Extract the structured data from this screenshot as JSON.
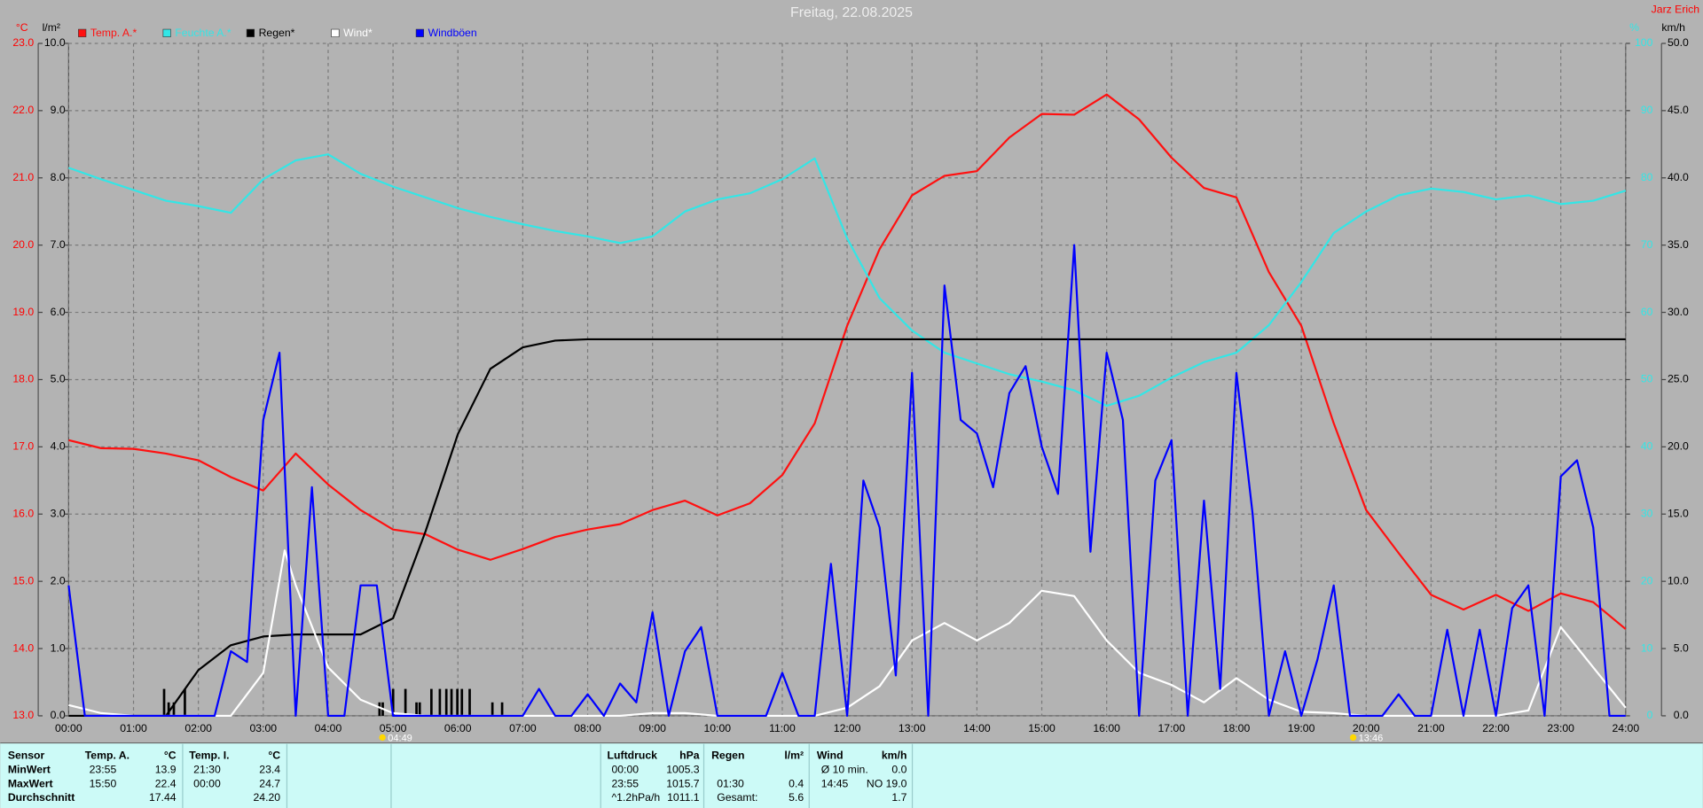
{
  "chart_data": {
    "type": "line",
    "title": "Freitag, 22.08.2025",
    "author": "Jarz Erich",
    "grid": true,
    "xlim": [
      0,
      24
    ],
    "xticks": [
      {
        "value": 0,
        "label": "00:00"
      },
      {
        "value": 1,
        "label": "01:00"
      },
      {
        "value": 2,
        "label": "02:00"
      },
      {
        "value": 3,
        "label": "03:00"
      },
      {
        "value": 4,
        "label": "04:00"
      },
      {
        "value": 5,
        "label": "05:00"
      },
      {
        "value": 6,
        "label": "06:00"
      },
      {
        "value": 7,
        "label": "07:00"
      },
      {
        "value": 8,
        "label": "08:00"
      },
      {
        "value": 9,
        "label": "09:00"
      },
      {
        "value": 10,
        "label": "10:00"
      },
      {
        "value": 11,
        "label": "11:00"
      },
      {
        "value": 12,
        "label": "12:00"
      },
      {
        "value": 13,
        "label": "13:00"
      },
      {
        "value": 14,
        "label": "14:00"
      },
      {
        "value": 15,
        "label": "15:00"
      },
      {
        "value": 16,
        "label": "16:00"
      },
      {
        "value": 17,
        "label": "17:00"
      },
      {
        "value": 18,
        "label": "18:00"
      },
      {
        "value": 19,
        "label": "19:00"
      },
      {
        "value": 20,
        "label": "20:00"
      },
      {
        "value": 21,
        "label": "21:00"
      },
      {
        "value": 22,
        "label": "22:00"
      },
      {
        "value": 23,
        "label": "23:00"
      },
      {
        "value": 24,
        "label": "24:00"
      }
    ],
    "axes": [
      {
        "unit": "°C",
        "color": "#ff0000",
        "lim": [
          13,
          23
        ],
        "ticks": [
          {
            "value": 13,
            "label": "13.0"
          },
          {
            "value": 14,
            "label": "14.0"
          },
          {
            "value": 15,
            "label": "15.0"
          },
          {
            "value": 16,
            "label": "16.0"
          },
          {
            "value": 17,
            "label": "17.0"
          },
          {
            "value": 18,
            "label": "18.0"
          },
          {
            "value": 19,
            "label": "19.0"
          },
          {
            "value": 20,
            "label": "20.0"
          },
          {
            "value": 21,
            "label": "21.0"
          },
          {
            "value": 22,
            "label": "22.0"
          },
          {
            "value": 23,
            "label": "23.0"
          }
        ]
      },
      {
        "unit": "l/m²",
        "color": "#000000",
        "lim": [
          0,
          10
        ],
        "ticks": [
          {
            "value": 0,
            "label": "0.0"
          },
          {
            "value": 1,
            "label": "1.0"
          },
          {
            "value": 2,
            "label": "2.0"
          },
          {
            "value": 3,
            "label": "3.0"
          },
          {
            "value": 4,
            "label": "4.0"
          },
          {
            "value": 5,
            "label": "5.0"
          },
          {
            "value": 6,
            "label": "6.0"
          },
          {
            "value": 7,
            "label": "7.0"
          },
          {
            "value": 8,
            "label": "8.0"
          },
          {
            "value": 9,
            "label": "9.0"
          },
          {
            "value": 10,
            "label": "10.0"
          }
        ]
      },
      {
        "unit": "%",
        "color": "#33e6e6",
        "lim": [
          0,
          100
        ],
        "ticks": [
          0,
          10,
          20,
          30,
          40,
          50,
          60,
          70,
          80,
          90,
          100
        ]
      },
      {
        "unit": "km/h",
        "color": "#000000",
        "lim": [
          0,
          50
        ],
        "ticks": [
          {
            "value": 0,
            "label": "0.0"
          },
          {
            "value": 5,
            "label": "5.0"
          },
          {
            "value": 10,
            "label": "10.0"
          },
          {
            "value": 15,
            "label": "15.0"
          },
          {
            "value": 20,
            "label": "20.0"
          },
          {
            "value": 25,
            "label": "25.0"
          },
          {
            "value": 30,
            "label": "30.0"
          },
          {
            "value": 35,
            "label": "35.0"
          },
          {
            "value": 40,
            "label": "40.0"
          },
          {
            "value": 45,
            "label": "45.0"
          },
          {
            "value": 50,
            "label": "50.0"
          }
        ]
      }
    ],
    "series": [
      {
        "name": "Temp. A.*",
        "color": "#ff1010",
        "axis": 0,
        "x": [
          0,
          0.5,
          1,
          1.5,
          2,
          2.5,
          3,
          3.5,
          4,
          4.5,
          5,
          5.5,
          6,
          6.5,
          7,
          7.5,
          8,
          8.5,
          9,
          9.5,
          10,
          10.5,
          11,
          11.5,
          12,
          12.5,
          13,
          13.5,
          14,
          14.5,
          15,
          15.5,
          16,
          16.5,
          17,
          17.5,
          18,
          18.5,
          19,
          19.5,
          20,
          20.5,
          21,
          21.5,
          22,
          22.5,
          23,
          23.5,
          24
        ],
        "values": [
          17.1,
          16.98,
          16.97,
          16.9,
          16.8,
          16.55,
          16.35,
          16.9,
          16.44,
          16.06,
          15.77,
          15.7,
          15.47,
          15.32,
          15.48,
          15.66,
          15.77,
          15.85,
          16.06,
          16.2,
          15.98,
          16.16,
          16.58,
          17.35,
          18.8,
          19.94,
          20.74,
          21.03,
          21.1,
          21.6,
          21.95,
          21.94,
          22.24,
          21.87,
          21.3,
          20.85,
          20.71,
          19.6,
          18.8,
          17.35,
          16.06,
          15.42,
          14.8,
          14.58,
          14.8,
          14.56,
          14.82,
          14.69,
          14.29
        ]
      },
      {
        "name": "Feuchte A.*",
        "color": "#33e6e6",
        "axis": 2,
        "x": [
          0,
          0.5,
          1,
          1.5,
          2,
          2.5,
          3,
          3.5,
          4,
          4.5,
          5,
          5.5,
          6,
          6.5,
          7,
          7.5,
          8,
          8.5,
          9,
          9.5,
          10,
          10.5,
          11,
          11.5,
          12,
          12.5,
          13,
          13.5,
          14,
          14.5,
          15,
          15.5,
          16,
          16.5,
          17,
          17.5,
          18,
          18.5,
          19,
          19.5,
          20,
          20.5,
          21,
          21.5,
          22,
          22.5,
          23,
          23.5,
          24
        ],
        "values": [
          81.5,
          79.8,
          78.2,
          76.6,
          75.8,
          74.8,
          79.8,
          82.6,
          83.5,
          80.6,
          78.7,
          77.1,
          75.5,
          74.2,
          73.1,
          72.1,
          71.3,
          70.3,
          71.3,
          75,
          76.8,
          77.7,
          79.8,
          82.9,
          71,
          62.1,
          57.3,
          54,
          52.4,
          50.8,
          49.7,
          48.4,
          46.1,
          47.6,
          50.3,
          52.6,
          54,
          58.1,
          64.5,
          71.8,
          75,
          77.4,
          78.4,
          77.9,
          76.8,
          77.4,
          76.1,
          76.6,
          78.1
        ]
      },
      {
        "name": "Regen*",
        "color": "#000000",
        "axis": 1,
        "x": [
          0,
          0.5,
          1,
          1.5,
          2,
          2.5,
          3,
          3.5,
          4,
          4.5,
          5,
          5.5,
          6,
          6.5,
          7,
          7.5,
          8,
          8.5,
          9,
          9.5,
          10,
          10.5,
          11,
          11.5,
          12,
          12.5,
          13,
          13.5,
          14,
          14.5,
          15,
          15.5,
          16,
          16.5,
          17,
          17.5,
          18,
          18.5,
          19,
          19.5,
          20,
          20.5,
          21,
          21.5,
          22,
          22.5,
          23,
          23.5,
          24
        ],
        "values": [
          0,
          0,
          0,
          0,
          0.68,
          1.05,
          1.18,
          1.21,
          1.21,
          1.21,
          1.45,
          2.74,
          4.19,
          5.16,
          5.48,
          5.58,
          5.6,
          5.6,
          5.6,
          5.6,
          5.6,
          5.6,
          5.6,
          5.6,
          5.6,
          5.6,
          5.6,
          5.6,
          5.6,
          5.6,
          5.6,
          5.6,
          5.6,
          5.6,
          5.6,
          5.6,
          5.6,
          5.6,
          5.6,
          5.6,
          5.6,
          5.6,
          5.6,
          5.6,
          5.6,
          5.6,
          5.6,
          5.6,
          5.6
        ]
      },
      {
        "name": "Wind*",
        "color": "#ffffff",
        "axis": 3,
        "x": [
          0,
          0.5,
          1,
          1.5,
          2,
          2.5,
          3,
          3.33,
          3.5,
          4,
          4.5,
          5,
          5.5,
          6,
          6.5,
          7,
          7.5,
          8,
          8.5,
          9,
          9.5,
          10,
          10.5,
          11,
          11.5,
          12,
          12.5,
          13,
          13.5,
          14,
          14.5,
          15,
          15.5,
          16,
          16.5,
          17,
          17.5,
          18,
          18.5,
          19,
          19.5,
          20,
          20.5,
          21,
          21.5,
          22,
          22.5,
          23,
          23.5,
          24
        ],
        "values": [
          0.8,
          0.2,
          0,
          0,
          0,
          0,
          3.2,
          12.3,
          9.7,
          3.6,
          1.2,
          0.2,
          0,
          0,
          0,
          0,
          0,
          0,
          0,
          0.2,
          0.2,
          0,
          0,
          0,
          0,
          0.6,
          2.2,
          5.6,
          6.9,
          5.6,
          6.9,
          9.3,
          8.9,
          5.6,
          3.2,
          2.3,
          1,
          2.8,
          1.2,
          0.3,
          0.2,
          0,
          0,
          0,
          0,
          0,
          0.4,
          6.6,
          3.6,
          0.6
        ]
      },
      {
        "name": "Windböen",
        "color": "#0000ff",
        "axis": 3,
        "x": [
          0,
          0.25,
          0.5,
          0.75,
          1,
          1.25,
          1.5,
          1.75,
          2,
          2.25,
          2.5,
          2.75,
          3,
          3.25,
          3.5,
          3.75,
          4,
          4.25,
          4.5,
          4.75,
          5,
          5.25,
          5.5,
          5.75,
          6,
          6.25,
          6.5,
          6.75,
          7,
          7.25,
          7.5,
          7.75,
          8,
          8.25,
          8.5,
          8.75,
          9,
          9.25,
          9.5,
          9.75,
          10,
          10.25,
          10.5,
          10.75,
          11,
          11.25,
          11.5,
          11.75,
          12,
          12.25,
          12.5,
          12.75,
          13,
          13.25,
          13.5,
          13.75,
          14,
          14.25,
          14.5,
          14.75,
          15,
          15.25,
          15.5,
          15.75,
          16,
          16.25,
          16.5,
          16.75,
          17,
          17.25,
          17.5,
          17.75,
          18,
          18.25,
          18.5,
          18.75,
          19,
          19.25,
          19.5,
          19.75,
          20,
          20.25,
          20.5,
          20.75,
          21,
          21.25,
          21.5,
          21.75,
          22,
          22.25,
          22.5,
          22.75,
          23,
          23.25,
          23.5,
          23.75,
          24
        ],
        "values": [
          9.7,
          0,
          0,
          0,
          0,
          0,
          0,
          0,
          0,
          0,
          4.8,
          4.0,
          22,
          27,
          0,
          17,
          0,
          0,
          9.7,
          9.7,
          0,
          0,
          0,
          0,
          0,
          0,
          0,
          0,
          0,
          2,
          0,
          0,
          1.6,
          0,
          2.4,
          1,
          7.7,
          0,
          4.8,
          6.6,
          0,
          0,
          0,
          0,
          3.2,
          0,
          0,
          11.3,
          0,
          17.5,
          14,
          3,
          25.5,
          0,
          32,
          22,
          21,
          17,
          24,
          26,
          20,
          16.5,
          35,
          12.2,
          27,
          22,
          0,
          17.5,
          20.5,
          0,
          16,
          2,
          25.5,
          15,
          0,
          4.8,
          0,
          4.2,
          9.7,
          0,
          0,
          0,
          1.6,
          0,
          0,
          6.4,
          0,
          6.4,
          0,
          8,
          9.7,
          0,
          17.8,
          19,
          14,
          0,
          0
        ]
      }
    ],
    "bars": {
      "color": "#000000",
      "axis": 1,
      "x": [
        1.47,
        1.54,
        1.62,
        1.79,
        4.79,
        4.84,
        5.0,
        5.19,
        5.36,
        5.41,
        5.59,
        5.72,
        5.82,
        5.9,
        5.99,
        6.06,
        6.18,
        6.53,
        6.68
      ],
      "values": [
        0.4,
        0.2,
        0.2,
        0.4,
        0.2,
        0.2,
        0.4,
        0.4,
        0.2,
        0.2,
        0.4,
        0.4,
        0.4,
        0.4,
        0.4,
        0.4,
        0.4,
        0.2,
        0.2
      ]
    },
    "annotations": [
      "04:49",
      "13:46"
    ]
  },
  "table": {
    "row_labels": [
      "Sensor",
      "MinWert",
      "MaxWert",
      "Durchschnitt"
    ],
    "sections": [
      {
        "title": "Temp. A.",
        "unit": "°C",
        "rows": [
          [
            "23:55",
            "13.9"
          ],
          [
            "15:50",
            "22.4"
          ],
          [
            null,
            "17.44"
          ]
        ]
      },
      {
        "title": "Temp. I.",
        "unit": "°C",
        "rows": [
          [
            "21:30",
            "23.4"
          ],
          [
            "00:00",
            "24.7"
          ],
          [
            null,
            "24.20"
          ]
        ]
      },
      {
        "title": "Luftdruck",
        "unit": "hPa",
        "rows": [
          [
            "00:00",
            "1005.3"
          ],
          [
            "23:55",
            "1015.7"
          ],
          [
            "^1.2hPa/h",
            "1011.1"
          ]
        ]
      },
      {
        "title": "Regen",
        "unit": "l/m²",
        "rows": [
          [
            null,
            null
          ],
          [
            "01:30",
            "0.4"
          ],
          [
            "Gesamt:",
            "5.6"
          ]
        ]
      },
      {
        "title": "Wind",
        "unit": "km/h",
        "rows": [
          [
            "Ø 10 min.",
            "0.0"
          ],
          [
            "14:45",
            "NO 19.0"
          ],
          [
            null,
            "1.7"
          ]
        ]
      }
    ]
  }
}
